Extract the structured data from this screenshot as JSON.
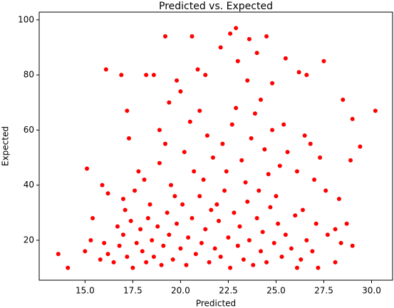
{
  "chart_data": {
    "type": "scatter",
    "title": "Predicted vs. Expected",
    "x_label": "Predicted",
    "y_label": "Expected",
    "color": "#ff0000",
    "xlim": [
      12.6,
      31.1
    ],
    "ylim": [
      5.5,
      102.8
    ],
    "xticks": [
      {
        "value": 15,
        "label": "15.0"
      },
      {
        "value": 17.5,
        "label": "17.5"
      },
      {
        "value": 20,
        "label": "20.0"
      },
      {
        "value": 22.5,
        "label": "22.5"
      },
      {
        "value": 25,
        "label": "25.0"
      },
      {
        "value": 27.5,
        "label": "27.5"
      },
      {
        "value": 30,
        "label": "30.0"
      }
    ],
    "yticks": [
      20,
      40,
      60,
      80,
      100
    ],
    "x": [
      13.6,
      14.1,
      15.1,
      16.1,
      16.9,
      17.2,
      27.5,
      28.5,
      29.0,
      29.4,
      30.2,
      28.9,
      22.9,
      22.6,
      19.2,
      20.6,
      24.5,
      23.6,
      26.2,
      26.6,
      27.7,
      28.1,
      28.7,
      28.1,
      15.4,
      15.9,
      16.2,
      15.0,
      15.3,
      27.2,
      26.1,
      16.5,
      16.8,
      17.0,
      17.2,
      17.4,
      17.5,
      17.7,
      17.9,
      18.0,
      18.2,
      18.3,
      18.5,
      18.6,
      18.8,
      19.0,
      19.1,
      19.3,
      19.4,
      19.6,
      19.8,
      20.0,
      20.1,
      20.3,
      20.4,
      20.6,
      20.8,
      21.0,
      21.1,
      21.3,
      21.5,
      21.6,
      21.8,
      22.0,
      22.1,
      22.3,
      22.5,
      22.6,
      22.8,
      23.0,
      23.1,
      23.3,
      23.5,
      23.6,
      23.8,
      24.0,
      24.2,
      24.3,
      24.5,
      24.7,
      24.9,
      25.1,
      25.3,
      25.5,
      25.8,
      26.0,
      26.3,
      26.6,
      26.9,
      16.2,
      16.0,
      15.8,
      17.1,
      18.4,
      19.7,
      21.2,
      22.4,
      23.4,
      24.1,
      24.6,
      25.0,
      21.9,
      18.1,
      18.9,
      19.5,
      20.2,
      20.7,
      21.4,
      21.7,
      22.2,
      22.7,
      23.2,
      23.7,
      24.4,
      24.8,
      25.2,
      25.6,
      26.1,
      26.5,
      27.0,
      27.3,
      17.6,
      17.8,
      19.2,
      20.5,
      21.0,
      22.9,
      23.9,
      24.2,
      25.4,
      26.8,
      27.6,
      28.3,
      20.0,
      19.4,
      18.6,
      18.2,
      21.3,
      22.1,
      23.0,
      24.0,
      24.8,
      25.5,
      19.8,
      20.9,
      23.5,
      18.9,
      17.3,
      16.7,
      17.0,
      29.0,
      28.4,
      26.4,
      27.1
    ],
    "values": [
      15,
      10,
      46,
      82,
      80,
      67,
      85,
      71,
      64,
      54,
      67,
      49,
      97,
      95,
      94,
      94,
      94,
      93,
      81,
      80,
      22,
      24,
      26,
      12,
      28,
      40,
      37,
      16,
      20,
      10,
      10,
      12,
      18,
      22,
      14,
      27,
      10,
      19,
      24,
      16,
      12,
      28,
      20,
      14,
      25,
      11,
      18,
      30,
      22,
      13,
      26,
      17,
      33,
      11,
      21,
      28,
      15,
      36,
      19,
      24,
      12,
      31,
      17,
      27,
      14,
      38,
      21,
      10,
      30,
      18,
      25,
      13,
      34,
      20,
      11,
      28,
      16,
      23,
      12,
      32,
      19,
      26,
      14,
      22,
      17,
      29,
      13,
      20,
      16,
      15,
      19,
      13,
      31,
      33,
      36,
      42,
      45,
      41,
      38,
      44,
      36,
      33,
      42,
      48,
      40,
      52,
      45,
      58,
      50,
      55,
      62,
      49,
      57,
      53,
      60,
      47,
      52,
      45,
      58,
      42,
      50,
      38,
      45,
      55,
      63,
      67,
      68,
      66,
      71,
      62,
      55,
      38,
      35,
      74,
      70,
      80,
      80,
      80,
      90,
      85,
      88,
      77,
      86,
      78,
      82,
      78,
      60,
      57,
      25,
      35,
      18,
      19,
      31,
      26
    ]
  }
}
